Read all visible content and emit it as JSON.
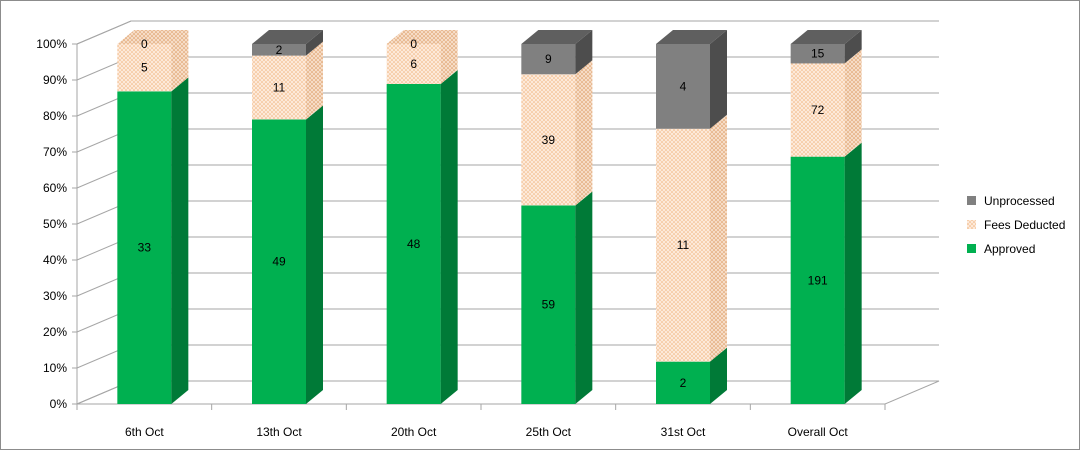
{
  "chart_data": {
    "type": "stacked-bar-100-3d",
    "categories": [
      "6th Oct",
      "13th Oct",
      "20th Oct",
      "25th Oct",
      "31st Oct",
      "Overall Oct"
    ],
    "series": [
      {
        "name": "Approved",
        "values": [
          33,
          49,
          48,
          59,
          2,
          191
        ],
        "color": "#00b050",
        "side_color": "#007a37",
        "top_color": "#33c46f"
      },
      {
        "name": "Fees Deducted",
        "values": [
          5,
          11,
          6,
          39,
          11,
          72
        ],
        "color": "#fde9d9",
        "side_color": "#f3d1b8",
        "top_color": "#fff3ea",
        "pattern": "dotted"
      },
      {
        "name": "Unprocessed",
        "values": [
          0,
          2,
          0,
          9,
          4,
          15
        ],
        "color": "#808080",
        "side_color": "#4d4d4d",
        "top_color": "#5f5f5f"
      }
    ],
    "y_ticks": [
      "0%",
      "10%",
      "20%",
      "30%",
      "40%",
      "50%",
      "60%",
      "70%",
      "80%",
      "90%",
      "100%"
    ],
    "ylim": [
      0,
      100
    ],
    "ylabel": "",
    "xlabel": "",
    "title": "",
    "grid": true,
    "legend_position": "right"
  }
}
